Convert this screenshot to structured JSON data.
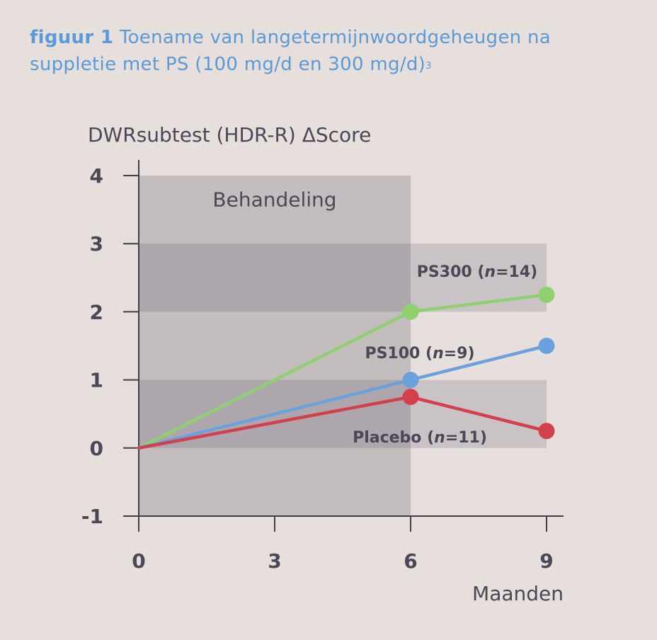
{
  "figure": {
    "label": "figuur 1",
    "caption": "Toename van langetermijnwoordgeheugen na suppletie met PS (100 mg/d en 300 mg/d)",
    "reference": "3"
  },
  "chart_data": {
    "type": "line",
    "title": "figuur 1 Toename van langetermijnwoordgeheugen na suppletie met PS (100 mg/d en 300 mg/d)",
    "ylabel": "DWRsubtest (HDR-R) ΔScore",
    "xlabel": "Maanden",
    "x_ticks": [
      "0",
      "3",
      "6",
      "9"
    ],
    "y_ticks": [
      "4",
      "3",
      "2",
      "1",
      "0",
      "-1"
    ],
    "xlim": [
      0,
      9
    ],
    "ylim": [
      -1,
      4
    ],
    "treatment_region": {
      "label": "Behandeling",
      "x_range": [
        0,
        6
      ]
    },
    "x": [
      0,
      6,
      9
    ],
    "series": [
      {
        "name": "PS300",
        "n": "14",
        "label_name": "PS300 (",
        "label_n_key": "n",
        "label_n_val": "=14)",
        "values": [
          0,
          2,
          2.25
        ],
        "color": "#8fd06e"
      },
      {
        "name": "PS100",
        "n": "9",
        "label_name": "PS100 (",
        "label_n_key": "n",
        "label_n_val": "=9)",
        "values": [
          0,
          1,
          1.5
        ],
        "color": "#6aa1dc"
      },
      {
        "name": "Placebo",
        "n": "11",
        "label_name": "Placebo (",
        "label_n_key": "n",
        "label_n_val": "=11)",
        "values": [
          0,
          0.75,
          0.25
        ],
        "color": "#d2404c"
      }
    ],
    "grid": false,
    "legend": "inline"
  }
}
